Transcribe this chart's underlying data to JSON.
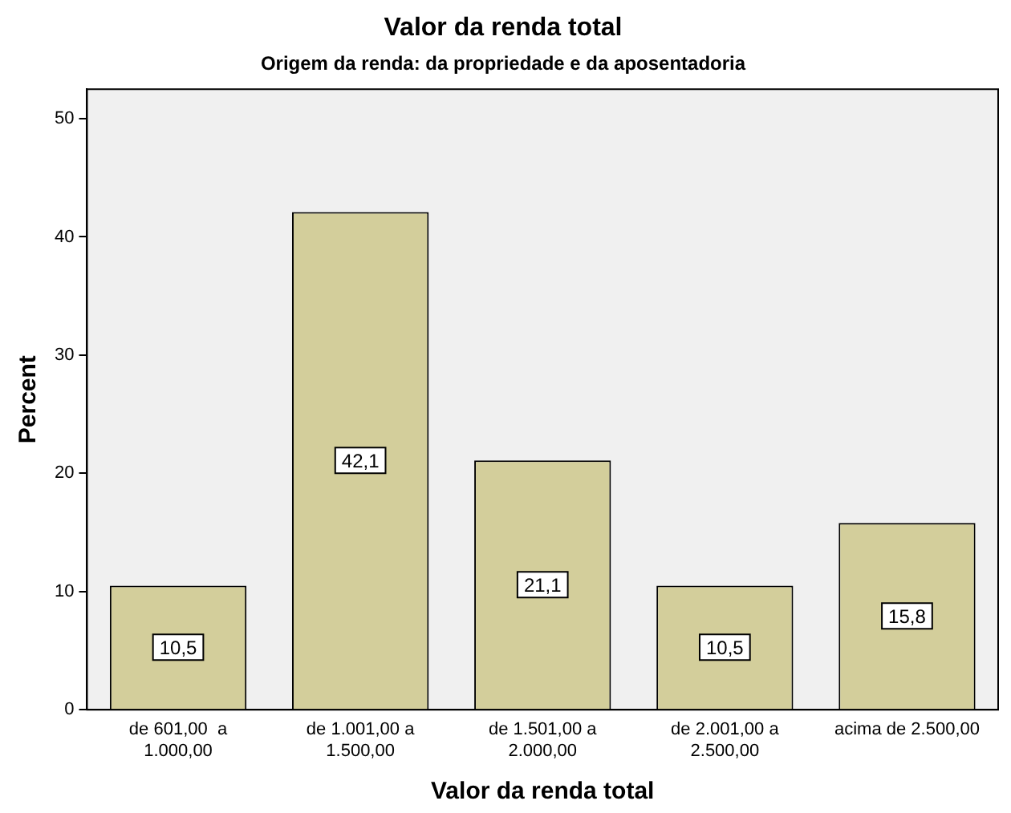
{
  "chart_data": {
    "type": "bar",
    "title": "Valor da renda total",
    "subtitle": "Origem da renda: da propriedade e da aposentadoria",
    "xlabel": "Valor da renda total",
    "ylabel": "Percent",
    "categories": [
      "de 601,00  a\n1.000,00",
      "de 1.001,00 a\n1.500,00",
      "de 1.501,00 a\n2.000,00",
      "de 2.001,00 a\n2.500,00",
      "acima de 2.500,00"
    ],
    "values": [
      10.5,
      42.1,
      21.1,
      10.5,
      15.8
    ],
    "value_labels": [
      "10,5",
      "42,1",
      "21,1",
      "10,5",
      "15,8"
    ],
    "color": "#d3ce9b",
    "ylim": [
      0,
      52.5
    ],
    "yticks": [
      0,
      10,
      20,
      30,
      40,
      50
    ],
    "grid": false,
    "legend": false
  }
}
